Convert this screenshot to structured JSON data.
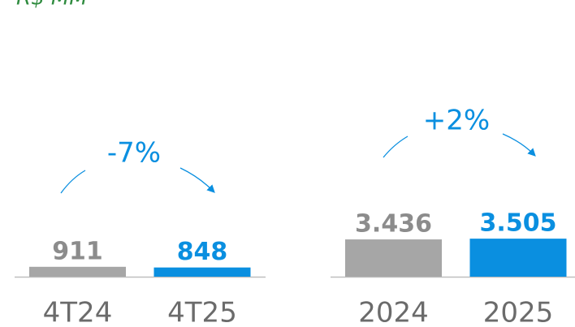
{
  "unit_label": "R$ MM",
  "chart_data": [
    {
      "type": "bar",
      "categories": [
        "4T24",
        "4T25"
      ],
      "values": [
        911,
        848
      ],
      "value_labels": [
        "911",
        "848"
      ],
      "colors": [
        "#a6a6a6",
        "#0a8fe0"
      ],
      "ylim": [
        0,
        4000
      ],
      "annotation": "-7%"
    },
    {
      "type": "bar",
      "categories": [
        "2024",
        "2025"
      ],
      "values": [
        3436,
        3505
      ],
      "value_labels": [
        "3.436",
        "3.505"
      ],
      "colors": [
        "#a6a6a6",
        "#0a8fe0"
      ],
      "ylim": [
        0,
        4000
      ],
      "annotation": "+2%"
    }
  ]
}
